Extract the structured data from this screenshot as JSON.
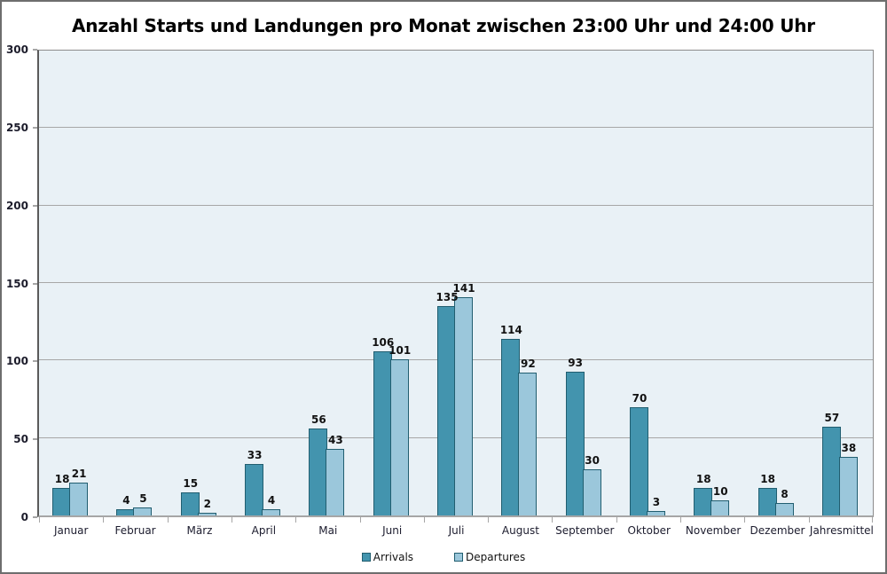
{
  "chart_data": {
    "type": "bar",
    "title": "Anzahl Starts und Landungen pro Monat zwischen 23:00 Uhr und 24:00 Uhr",
    "categories": [
      "Januar",
      "Februar",
      "März",
      "April",
      "Mai",
      "Juni",
      "Juli",
      "August",
      "September",
      "Oktober",
      "November",
      "Dezember",
      "Jahresmittel"
    ],
    "series": [
      {
        "name": "Arrivals",
        "values": [
          18,
          4,
          15,
          33,
          56,
          106,
          135,
          114,
          93,
          70,
          18,
          18,
          57
        ],
        "color": "#4394ae"
      },
      {
        "name": "Departures",
        "values": [
          21,
          5,
          2,
          4,
          43,
          101,
          141,
          92,
          30,
          3,
          10,
          8,
          38
        ],
        "color": "#9bc7db"
      }
    ],
    "bar_border_color": "#215e70",
    "xlabel": "",
    "ylabel": "",
    "ylim": [
      0,
      300
    ],
    "yticks": [
      0,
      50,
      100,
      150,
      200,
      250,
      300
    ],
    "grid": true,
    "gridline_color": "#a7a7a7",
    "plot_background": "#e9f1f6",
    "legend_position": "bottom"
  }
}
